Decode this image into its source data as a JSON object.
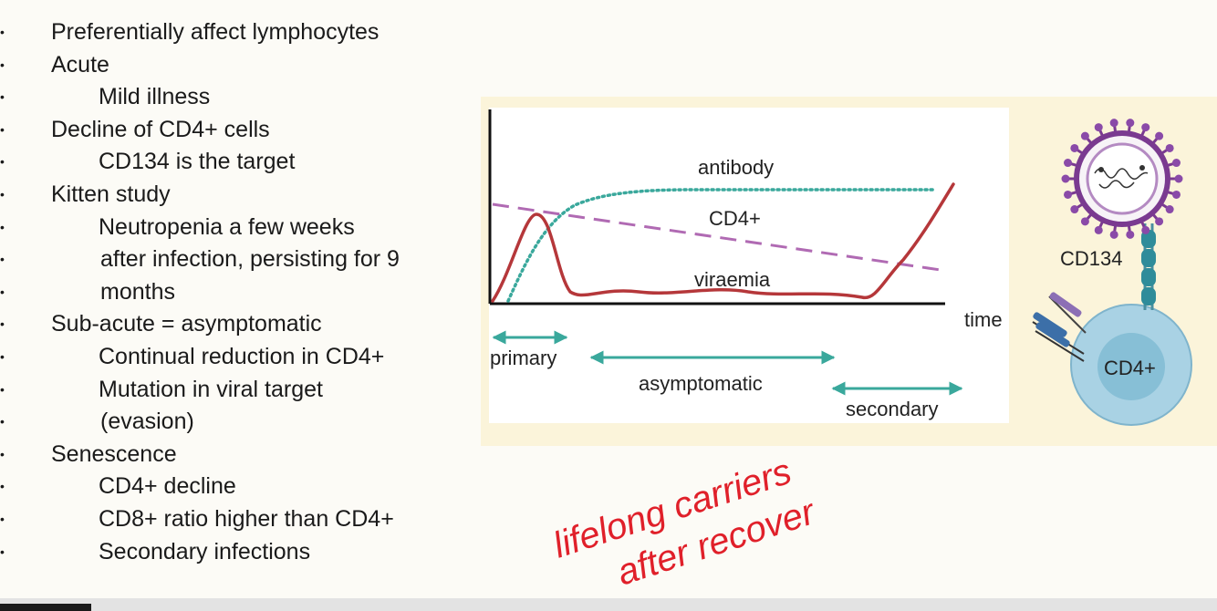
{
  "bullets": [
    {
      "text": "Preferentially affect lymphocytes",
      "level": 0
    },
    {
      "text": "Acute",
      "level": 0
    },
    {
      "text": "Mild illness",
      "level": 1
    },
    {
      "text": "Decline of CD4+ cells",
      "level": 0
    },
    {
      "text": "CD134 is the target",
      "level": 1
    },
    {
      "text": "Kitten study",
      "level": 0
    },
    {
      "text": "Neutropenia a few weeks",
      "level": 1
    },
    {
      "text": "after infection, persisting for 9",
      "level": 1,
      "continuation": true
    },
    {
      "text": "months",
      "level": 1,
      "continuation": true
    },
    {
      "text": "Sub-acute = asymptomatic",
      "level": 0
    },
    {
      "text": "Continual reduction in CD4+",
      "level": 1
    },
    {
      "text": "Mutation in viral target",
      "level": 1
    },
    {
      "text": "(evasion)",
      "level": 1,
      "continuation": true
    },
    {
      "text": "Senescence",
      "level": 0
    },
    {
      "text": "CD4+ decline",
      "level": 1
    },
    {
      "text": "CD8+ ratio higher than CD4+",
      "level": 1
    },
    {
      "text": "Secondary infections",
      "level": 1
    }
  ],
  "bullet_glyph": "•",
  "chart_data": {
    "type": "line",
    "xlabel": "time",
    "ylabel": "",
    "series": [
      {
        "name": "antibody",
        "color": "#3aa89c",
        "style": "dotted"
      },
      {
        "name": "CD4+",
        "color": "#b06ab3",
        "style": "dashed"
      },
      {
        "name": "viraemia",
        "color": "#b5373a",
        "style": "solid"
      }
    ],
    "phases": [
      {
        "label": "primary"
      },
      {
        "label": "asymptomatic"
      },
      {
        "label": "secondary"
      }
    ],
    "phase_arrow_color": "#3aa89c"
  },
  "cell_diagram": {
    "receptor_label": "CD134",
    "cell_label": "CD4+"
  },
  "handwriting": {
    "line1": "lifelong carriers",
    "line2": "after recover",
    "color": "#e0202a"
  },
  "colors": {
    "background": "#fcfbf6",
    "figure_panel": "#fbf4da"
  }
}
